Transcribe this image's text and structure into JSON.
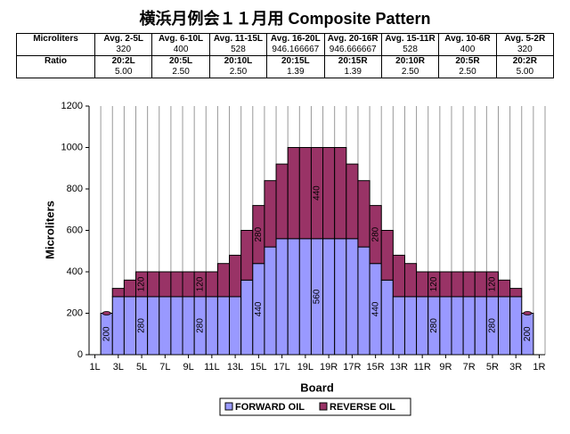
{
  "title": "横浜月例会１１月用 Composite Pattern",
  "table": {
    "rows": [
      [
        "Microliters",
        "Avg. 2-5L",
        "Avg. 6-10L",
        "Avg. 11-15L",
        "Avg. 16-20L",
        "Avg. 20-16R",
        "Avg. 15-11R",
        "Avg. 10-6R",
        "Avg. 5-2R"
      ],
      [
        null,
        "320",
        "400",
        "528",
        "946.166667",
        "946.666667",
        "528",
        "400",
        "320"
      ],
      [
        "Ratio",
        "20:2L",
        "20:5L",
        "20:10L",
        "20:15L",
        "20:15R",
        "20:10R",
        "20:5R",
        "20:2R"
      ],
      [
        null,
        "5.00",
        "2.50",
        "2.50",
        "1.39",
        "1.39",
        "2.50",
        "2.50",
        "5.00"
      ]
    ]
  },
  "chart_data": {
    "type": "stacked_bar",
    "x_label": "Board",
    "y_label": "Microliters",
    "categories": [
      "1L",
      null,
      "3L",
      null,
      "5L",
      null,
      "7L",
      null,
      "9L",
      null,
      "11L",
      null,
      "13L",
      null,
      "15L",
      null,
      "17L",
      null,
      "19L",
      null,
      "19R",
      null,
      "17R",
      null,
      "15R",
      null,
      "13R",
      null,
      "11R",
      null,
      "9R",
      null,
      "7R",
      null,
      "5R",
      null,
      "3R",
      null,
      "1R"
    ],
    "series": [
      {
        "name": "FORWARD OIL",
        "color": "#9999ff",
        "values": [
          null,
          200,
          280,
          280,
          280,
          280,
          280,
          280,
          280,
          280,
          280,
          280,
          280,
          360,
          440,
          520,
          560,
          560,
          560,
          560,
          560,
          560,
          560,
          520,
          440,
          360,
          280,
          280,
          280,
          280,
          280,
          280,
          280,
          280,
          280,
          280,
          280,
          200,
          null
        ],
        "value_labels": [
          null,
          "200",
          null,
          null,
          "280",
          null,
          null,
          null,
          null,
          "280",
          null,
          null,
          null,
          null,
          "440",
          null,
          null,
          null,
          null,
          "560",
          null,
          null,
          null,
          null,
          "440",
          null,
          null,
          null,
          null,
          "280",
          null,
          null,
          null,
          null,
          "280",
          null,
          null,
          "200",
          null
        ]
      },
      {
        "name": "REVERSE OIL",
        "color": "#993366",
        "values": [
          null,
          0,
          40,
          80,
          120,
          120,
          120,
          120,
          120,
          120,
          120,
          160,
          200,
          240,
          280,
          320,
          360,
          440,
          440,
          440,
          440,
          440,
          360,
          320,
          280,
          240,
          200,
          160,
          120,
          120,
          120,
          120,
          120,
          120,
          120,
          80,
          40,
          0,
          null
        ],
        "value_labels": [
          null,
          null,
          null,
          null,
          "120",
          null,
          null,
          null,
          null,
          "120",
          null,
          null,
          null,
          null,
          "280",
          null,
          null,
          null,
          null,
          "440",
          null,
          null,
          null,
          null,
          "280",
          null,
          null,
          null,
          null,
          "120",
          null,
          null,
          null,
          null,
          "120",
          null,
          null,
          null,
          null
        ]
      }
    ],
    "ylim": [
      0,
      1200
    ],
    "yticks": [
      0,
      200,
      400,
      600,
      800,
      1000,
      1200
    ],
    "grid": "x",
    "legend": "bottom"
  }
}
